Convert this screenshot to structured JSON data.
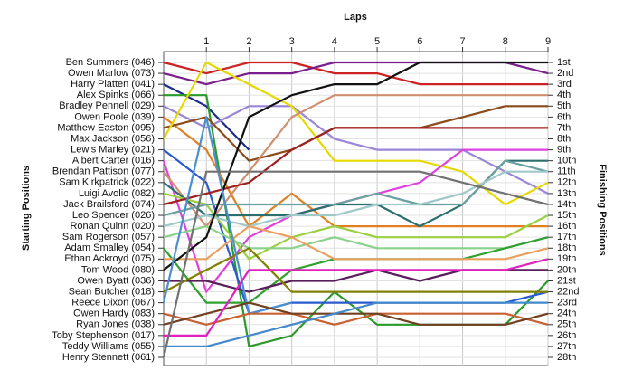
{
  "chart_data": {
    "type": "lap-chart",
    "x_label": "Laps",
    "y_label": "Starting Positions",
    "y2_label": "Finishing Positions",
    "x": [
      0,
      1,
      2,
      3,
      4,
      5,
      6,
      7,
      8,
      9
    ],
    "xlim": [
      0,
      9
    ],
    "xticks": [
      1,
      2,
      3,
      4,
      5,
      6,
      7,
      8,
      9
    ],
    "ylim": [
      1,
      28
    ],
    "y2ticks": [
      {
        "value": 1,
        "label": "1st"
      },
      {
        "value": 2,
        "label": "2nd"
      },
      {
        "value": 3,
        "label": "3rd"
      },
      {
        "value": 4,
        "label": "4th"
      },
      {
        "value": 5,
        "label": "5th"
      },
      {
        "value": 6,
        "label": "6th"
      },
      {
        "value": 7,
        "label": "7th"
      },
      {
        "value": 8,
        "label": "8th"
      },
      {
        "value": 9,
        "label": "9th"
      },
      {
        "value": 10,
        "label": "10th"
      },
      {
        "value": 11,
        "label": "11th"
      },
      {
        "value": 12,
        "label": "12th"
      },
      {
        "value": 13,
        "label": "13th"
      },
      {
        "value": 14,
        "label": "14th"
      },
      {
        "value": 15,
        "label": "15th"
      },
      {
        "value": 16,
        "label": "16th"
      },
      {
        "value": 17,
        "label": "17th"
      },
      {
        "value": 18,
        "label": "18th"
      },
      {
        "value": 19,
        "label": "19th"
      },
      {
        "value": 20,
        "label": "20th"
      },
      {
        "value": 21,
        "label": "21st"
      },
      {
        "value": 22,
        "label": "22nd"
      },
      {
        "value": 23,
        "label": "23rd"
      },
      {
        "value": 24,
        "label": "24th"
      },
      {
        "value": 25,
        "label": "25th"
      },
      {
        "value": 26,
        "label": "26th"
      },
      {
        "value": 27,
        "label": "27th"
      },
      {
        "value": 28,
        "label": "28th"
      }
    ],
    "grid": true,
    "series": [
      {
        "name": "Ben Summers (046)",
        "color": "#cc2222",
        "values": [
          1,
          2,
          1,
          1,
          2,
          2,
          3,
          3,
          3,
          3
        ]
      },
      {
        "name": "Owen Marlow (073)",
        "color": "#7a1e8e",
        "values": [
          2,
          3,
          2,
          2,
          1,
          1,
          1,
          1,
          1,
          2
        ]
      },
      {
        "name": "Harry Platten (041)",
        "color": "#1c2c8c",
        "values": [
          3,
          5,
          9,
          null,
          null,
          null,
          null,
          null,
          null,
          null
        ]
      },
      {
        "name": "Alex Spinks (066)",
        "color": "#2a9a2a",
        "values": [
          4,
          4,
          27,
          26,
          22,
          25,
          25,
          25,
          25,
          21
        ]
      },
      {
        "name": "Bradley Pennell (029)",
        "color": "#9a86d6",
        "values": [
          5,
          7,
          5,
          5,
          8,
          9,
          9,
          9,
          11,
          13
        ]
      },
      {
        "name": "Owen Poole (039)",
        "color": "#e08020",
        "values": [
          6,
          9,
          16,
          13,
          16,
          16,
          16,
          16,
          16,
          16
        ]
      },
      {
        "name": "Matthew Easton (095)",
        "color": "#8b4a1a",
        "values": [
          7,
          6,
          10,
          9,
          7,
          7,
          7,
          6,
          5,
          5
        ]
      },
      {
        "name": "Max Jackson (056)",
        "color": "#e6d800",
        "values": [
          8,
          1,
          3,
          5,
          10,
          10,
          10,
          11,
          14,
          12
        ]
      },
      {
        "name": "Lewis Marley (021)",
        "color": "#2a5ad0",
        "values": [
          9,
          12,
          24,
          23,
          23,
          23,
          23,
          23,
          23,
          22
        ]
      },
      {
        "name": "Albert Carter (016)",
        "color": "#e040e0",
        "values": [
          10,
          22,
          17,
          15,
          14,
          13,
          12,
          9,
          9,
          9
        ]
      },
      {
        "name": "Brendan Pattison (077)",
        "color": "#d09070",
        "values": [
          11,
          16,
          11,
          6,
          4,
          4,
          4,
          4,
          4,
          4
        ]
      },
      {
        "name": "Sam Kirkpatrick (022)",
        "color": "#2c6e6e",
        "values": [
          12,
          15,
          15,
          15,
          14,
          14,
          16,
          14,
          10,
          10
        ]
      },
      {
        "name": "Luigi Avolio (082)",
        "color": "#9ad040",
        "values": [
          13,
          14,
          19,
          17,
          16,
          17,
          17,
          17,
          17,
          15
        ]
      },
      {
        "name": "Jack Brailsford (074)",
        "color": "#a02020",
        "values": [
          14,
          13,
          12,
          9,
          7,
          7,
          7,
          7,
          7,
          7
        ]
      },
      {
        "name": "Leo Spencer (026)",
        "color": "#6aa0a0",
        "values": [
          15,
          14,
          14,
          14,
          14,
          13,
          14,
          14,
          10,
          11
        ]
      },
      {
        "name": "Ronan Quinn (020)",
        "color": "#a0c8c8",
        "values": [
          16,
          15,
          16,
          15,
          15,
          14,
          14,
          13,
          11,
          11
        ]
      },
      {
        "name": "Sam Rogerson (057)",
        "color": "#8bd08b",
        "values": [
          17,
          16,
          18,
          18,
          17,
          18,
          18,
          18,
          18,
          17
        ]
      },
      {
        "name": "Adam Smalley (054)",
        "color": "#30a030",
        "values": [
          18,
          23,
          23,
          20,
          19,
          19,
          19,
          19,
          18,
          17
        ]
      },
      {
        "name": "Ethan Ackroyd (075)",
        "color": "#e8a060",
        "values": [
          19,
          19,
          16,
          17,
          19,
          19,
          19,
          19,
          19,
          18
        ]
      },
      {
        "name": "Tom Wood (080)",
        "color": "#111111",
        "values": [
          20,
          17,
          6,
          4,
          3,
          3,
          1,
          1,
          1,
          1
        ]
      },
      {
        "name": "Owen Byatt (036)",
        "color": "#5a1e5a",
        "values": [
          21,
          21,
          22,
          21,
          21,
          20,
          21,
          20,
          20,
          20
        ]
      },
      {
        "name": "Sean Butcher (018)",
        "color": "#808000",
        "values": [
          22,
          20,
          18,
          22,
          22,
          22,
          22,
          22,
          22,
          22
        ]
      },
      {
        "name": "Reece Dixon (067)",
        "color": "#4a90d0",
        "values": [
          23,
          6,
          24,
          23,
          null,
          null,
          null,
          null,
          null,
          null
        ]
      },
      {
        "name": "Owen Hardy (083)",
        "color": "#c86030",
        "values": [
          24,
          25,
          24,
          24,
          25,
          24,
          24,
          24,
          24,
          25
        ]
      },
      {
        "name": "Ryan Jones (038)",
        "color": "#704020",
        "values": [
          25,
          24,
          23,
          24,
          24,
          24,
          25,
          25,
          25,
          24
        ]
      },
      {
        "name": "Toby Stephenson (017)",
        "color": "#e020c0",
        "values": [
          26,
          26,
          20,
          20,
          20,
          20,
          20,
          20,
          20,
          19
        ]
      },
      {
        "name": "Teddy Williams (055)",
        "color": "#4488cc",
        "values": [
          27,
          27,
          26,
          25,
          24,
          23,
          23,
          23,
          23,
          23
        ]
      },
      {
        "name": "Henry Stennett (061)",
        "color": "#707070",
        "values": [
          28,
          11,
          11,
          11,
          11,
          11,
          11,
          12,
          13,
          14
        ]
      }
    ]
  }
}
